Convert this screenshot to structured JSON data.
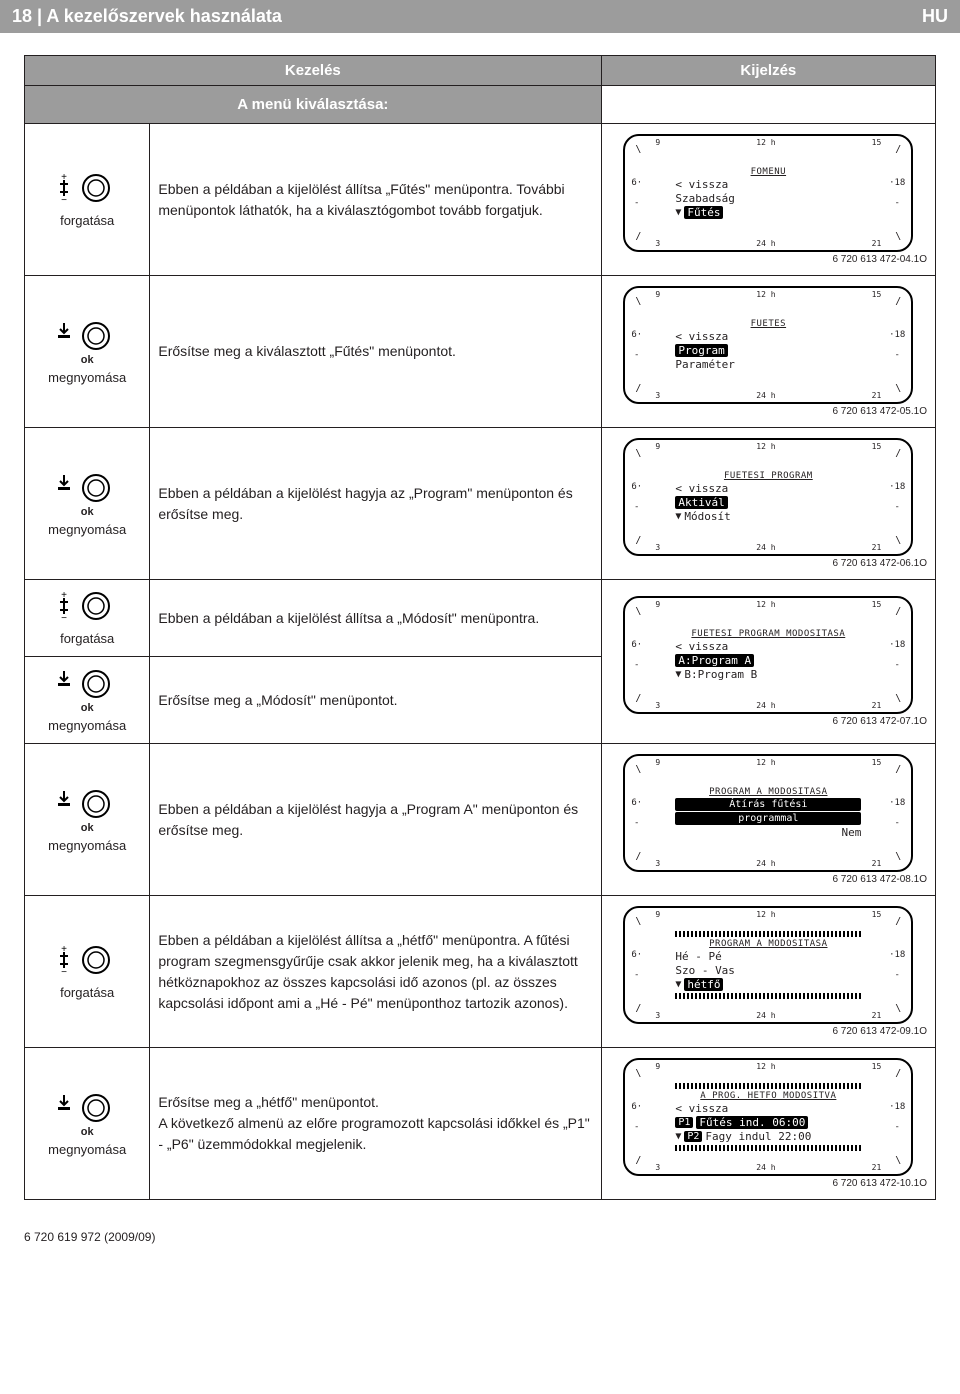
{
  "header": {
    "left": "18 | A kezelőszervek használata",
    "right": "HU"
  },
  "columns": {
    "left": "Kezelés",
    "right": "Kijelzés"
  },
  "subheader": "A menü kiválasztása:",
  "actions": {
    "rotate": "forgatása",
    "press": "megnyomása",
    "ok": "ok"
  },
  "scale": {
    "top": [
      "9",
      "12 h",
      "15"
    ],
    "bottom": [
      "3",
      "24 h",
      "21"
    ],
    "left": "6",
    "right": "18"
  },
  "rows": [
    {
      "action": "rotate",
      "text": "Ebben a példában a kijelölést állítsa „Fűtés\" menüpontra. További menüpontok láthatók, ha a kiválasztógombot tovább forgatjuk.",
      "display": {
        "title": "FOMENU",
        "lines": [
          {
            "txt": "< vissza"
          },
          {
            "txt": "Szabadság"
          },
          {
            "txt": "Fűtés",
            "sel": true,
            "arrow": "▼"
          }
        ]
      },
      "caption": "6 720 613 472-04.1O"
    },
    {
      "action": "press",
      "text": "Erősítse meg a kiválasztott „Fűtés\" menüpontot.",
      "display": {
        "title": "FUETES",
        "lines": [
          {
            "txt": "< vissza"
          },
          {
            "txt": "Program",
            "sel": true
          },
          {
            "txt": "Paraméter"
          }
        ]
      },
      "caption": "6 720 613 472-05.1O"
    },
    {
      "action": "press",
      "text": "Ebben a példában a kijelölést hagyja az „Program\" menüponton és erősítse meg.",
      "display": {
        "title": "FUETESI PROGRAM",
        "lines": [
          {
            "txt": "< vissza"
          },
          {
            "txt": "Aktivál",
            "sel": true
          },
          {
            "txt": "Módosít",
            "arrow": "▼"
          }
        ]
      },
      "caption": "6 720 613 472-06.1O"
    },
    {
      "action": "rotate+press",
      "text1": "Ebben a példában a kijelölést állítsa a „Módosít\" menüpontra.",
      "text2": "Erősítse meg a „Módosít\" menüpontot.",
      "display": {
        "title": "FUETESI PROGRAM MODOSITASA",
        "lines": [
          {
            "txt": "< vissza"
          },
          {
            "txt": "A:Program A",
            "sel": true
          },
          {
            "txt": "B:Program B",
            "arrow": "▼"
          }
        ]
      },
      "caption": "6 720 613 472-07.1O"
    },
    {
      "action": "press",
      "text": "Ebben a példában a kijelölést hagyja a „Program A\" menüponton és erősítse meg.",
      "display": {
        "title": "PROGRAM A MODOSITASA",
        "boxlines": [
          "Átírás fűtési",
          "programmal"
        ],
        "right_tag": "Nem"
      },
      "caption": "6 720 613 472-08.1O"
    },
    {
      "action": "rotate",
      "text": "Ebben a példában a kijelölést állítsa a „hétfő\" menüpontra. A fűtési program szegmensgyűrűje csak akkor jelenik meg, ha a kiválasztott hétköznapokhoz az összes kapcsolási idő azonos (pl. az összes kapcsolási időpont ami a „Hé - Pé\" menüponthoz tartozik azonos).",
      "display": {
        "title": "PROGRAM A MODOSITASA",
        "ticks_top": true,
        "lines": [
          {
            "txt": "Hé - Pé"
          },
          {
            "txt": "Szo - Vas"
          },
          {
            "txt": "hétfő",
            "sel": true,
            "arrow": "▼"
          }
        ],
        "ticks_bot": true
      },
      "caption": "6 720 613 472-09.1O"
    },
    {
      "action": "press",
      "text": "Erősítse meg a „hétfő\" menüpontot.\nA következő almenü az előre programozott kapcsolási időkkel és „P1\" - „P6\" üzemmódokkal megjelenik.",
      "display": {
        "title": "A PROG. HETFO MODOSITVA",
        "ticks_top": true,
        "lines": [
          {
            "txt": "< vissza"
          },
          {
            "tag": "P1",
            "txt": "Fűtés ind. 06:00",
            "sel": true
          },
          {
            "tag": "P2",
            "txt": "Fagy indul 22:00",
            "arrow": "▼"
          }
        ],
        "ticks_bot": true
      },
      "caption": "6 720 613 472-10.1O"
    }
  ],
  "footer": "6 720 619 972 (2009/09)"
}
